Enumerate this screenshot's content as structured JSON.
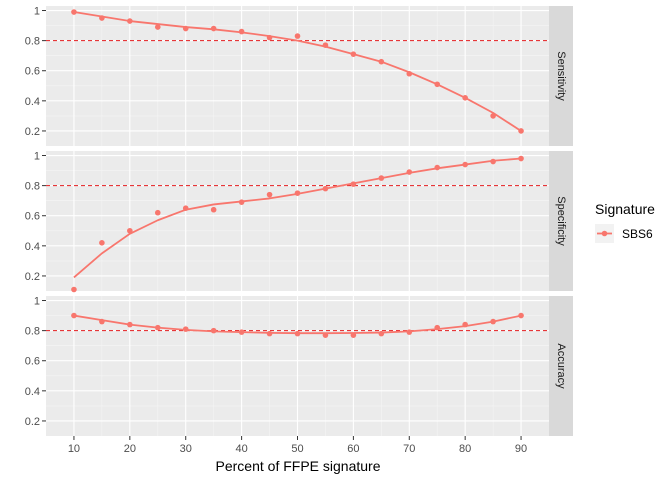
{
  "chart_data": {
    "type": "line",
    "xlabel": "Percent of FFPE signature",
    "x_ticks": [
      10,
      20,
      30,
      40,
      50,
      60,
      70,
      80,
      90
    ],
    "xlim": [
      5,
      95
    ],
    "y_ticks": [
      0.2,
      0.4,
      0.6,
      0.8,
      1
    ],
    "y_tick_labels": [
      "0.2",
      "0.4",
      "0.6",
      "0.8",
      "1"
    ],
    "ylim": [
      0.1,
      1.03
    ],
    "reference_line": 0.8,
    "grid": true,
    "legend": {
      "title": "Signature",
      "position": "right",
      "items": [
        {
          "name": "SBS6",
          "color": "#F8766D"
        }
      ]
    },
    "panels": [
      {
        "label": "Sensitivity",
        "series": [
          {
            "name": "SBS6",
            "x": [
              10,
              15,
              20,
              25,
              30,
              35,
              40,
              45,
              50,
              55,
              60,
              65,
              70,
              75,
              80,
              85,
              90
            ],
            "points": [
              0.99,
              0.95,
              0.93,
              0.89,
              0.88,
              0.88,
              0.86,
              0.82,
              0.83,
              0.77,
              0.71,
              0.66,
              0.58,
              0.51,
              0.42,
              0.3,
              0.2
            ],
            "smooth": [
              0.99,
              0.96,
              0.93,
              0.91,
              0.89,
              0.875,
              0.855,
              0.83,
              0.8,
              0.76,
              0.71,
              0.66,
              0.59,
              0.51,
              0.42,
              0.32,
              0.2
            ]
          }
        ]
      },
      {
        "label": "Specificity",
        "series": [
          {
            "name": "SBS6",
            "x": [
              10,
              15,
              20,
              25,
              30,
              35,
              40,
              45,
              50,
              55,
              60,
              65,
              70,
              75,
              80,
              85,
              90
            ],
            "points": [
              0.11,
              0.42,
              0.5,
              0.62,
              0.65,
              0.64,
              0.69,
              0.74,
              0.75,
              0.78,
              0.81,
              0.85,
              0.89,
              0.92,
              0.94,
              0.96,
              0.98
            ],
            "smooth": [
              0.19,
              0.35,
              0.48,
              0.57,
              0.64,
              0.675,
              0.695,
              0.715,
              0.745,
              0.78,
              0.815,
              0.85,
              0.885,
              0.915,
              0.94,
              0.965,
              0.98
            ]
          }
        ]
      },
      {
        "label": "Accuracy",
        "series": [
          {
            "name": "SBS6",
            "x": [
              10,
              15,
              20,
              25,
              30,
              35,
              40,
              45,
              50,
              55,
              60,
              65,
              70,
              75,
              80,
              85,
              90
            ],
            "points": [
              0.9,
              0.86,
              0.84,
              0.82,
              0.81,
              0.8,
              0.79,
              0.78,
              0.78,
              0.77,
              0.77,
              0.78,
              0.79,
              0.82,
              0.84,
              0.86,
              0.9
            ],
            "smooth": [
              0.9,
              0.87,
              0.84,
              0.82,
              0.805,
              0.795,
              0.79,
              0.785,
              0.783,
              0.783,
              0.784,
              0.787,
              0.795,
              0.81,
              0.83,
              0.86,
              0.9
            ]
          }
        ]
      }
    ]
  }
}
